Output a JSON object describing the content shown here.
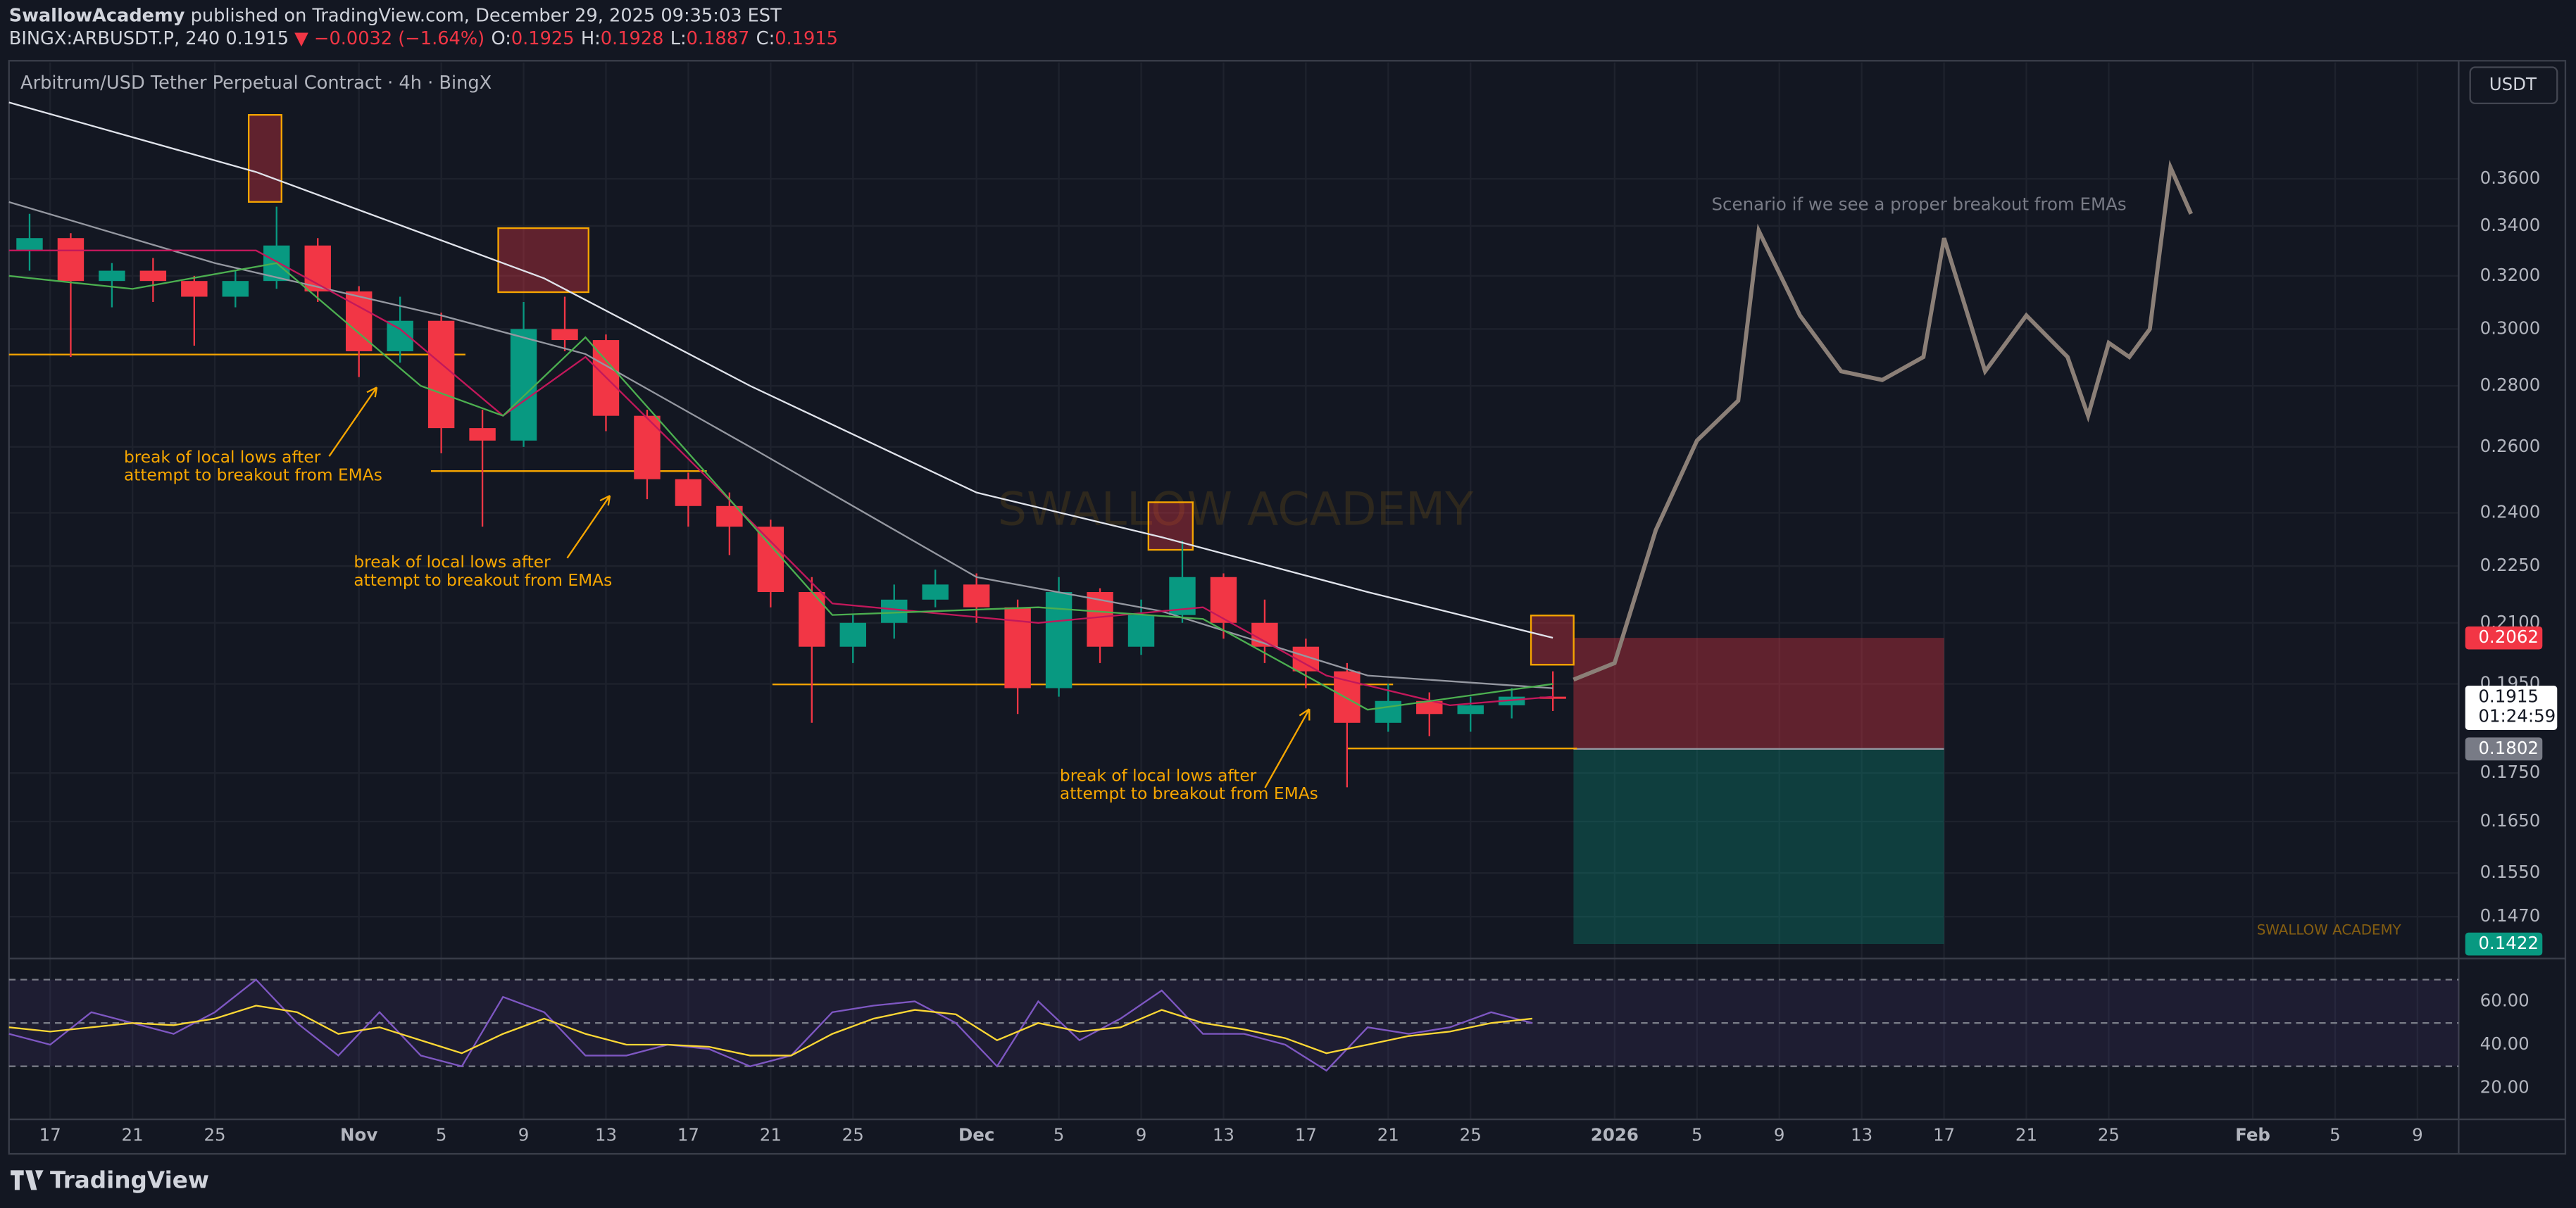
{
  "header": {
    "author": "SwallowAcademy",
    "published": "published on TradingView.com, December 29, 2025 09:35:03 EST",
    "symbol": "BINGX:ARBUSDT.P, 240",
    "last": "0.1915",
    "change": "▼ −0.0032 (−1.64%)",
    "ohlc": [
      {
        "label": "O:",
        "value": "0.1925"
      },
      {
        "label": "H:",
        "value": "0.1928"
      },
      {
        "label": "L:",
        "value": "0.1887"
      },
      {
        "label": "C:",
        "value": "0.1915"
      }
    ]
  },
  "footer": {
    "brand": "TradingView"
  },
  "chart_data": [
    {
      "type": "candlestick",
      "title": "Arbitrum/USD Tether Perpetual Contract · 4h · BingX",
      "currency": "USDT",
      "log_scale": true,
      "grid": true,
      "xlim": [
        "2025-10-15",
        "2026-02-11"
      ],
      "xticks": [
        {
          "value": "2025-10-17",
          "label": "17"
        },
        {
          "value": "2025-10-21",
          "label": "21"
        },
        {
          "value": "2025-10-25",
          "label": "25"
        },
        {
          "value": "2025-11-01",
          "label": "Nov"
        },
        {
          "value": "2025-11-05",
          "label": "5"
        },
        {
          "value": "2025-11-09",
          "label": "9"
        },
        {
          "value": "2025-11-13",
          "label": "13"
        },
        {
          "value": "2025-11-17",
          "label": "17"
        },
        {
          "value": "2025-11-21",
          "label": "21"
        },
        {
          "value": "2025-11-25",
          "label": "25"
        },
        {
          "value": "2025-12-01",
          "label": "Dec"
        },
        {
          "value": "2025-12-05",
          "label": "5"
        },
        {
          "value": "2025-12-09",
          "label": "9"
        },
        {
          "value": "2025-12-13",
          "label": "13"
        },
        {
          "value": "2025-12-17",
          "label": "17"
        },
        {
          "value": "2025-12-21",
          "label": "21"
        },
        {
          "value": "2025-12-25",
          "label": "25"
        },
        {
          "value": "2026-01-01",
          "label": "2026"
        },
        {
          "value": "2026-01-05",
          "label": "5"
        },
        {
          "value": "2026-01-09",
          "label": "9"
        },
        {
          "value": "2026-01-13",
          "label": "13"
        },
        {
          "value": "2026-01-17",
          "label": "17"
        },
        {
          "value": "2026-01-21",
          "label": "21"
        },
        {
          "value": "2026-01-25",
          "label": "25"
        },
        {
          "value": "2026-02-01",
          "label": "Feb"
        },
        {
          "value": "2026-02-05",
          "label": "5"
        },
        {
          "value": "2026-02-09",
          "label": "9"
        }
      ],
      "ylim": [
        0.14,
        0.413
      ],
      "yticks": [
        {
          "value": 0.36,
          "label": "0.3600"
        },
        {
          "value": 0.34,
          "label": "0.3400"
        },
        {
          "value": 0.32,
          "label": "0.3200"
        },
        {
          "value": 0.3,
          "label": "0.3000"
        },
        {
          "value": 0.28,
          "label": "0.2800"
        },
        {
          "value": 0.26,
          "label": "0.2600"
        },
        {
          "value": 0.24,
          "label": "0.2400"
        },
        {
          "value": 0.225,
          "label": "0.2250"
        },
        {
          "value": 0.21,
          "label": "0.2100"
        },
        {
          "value": 0.195,
          "label": "0.1950"
        },
        {
          "value": 0.175,
          "label": "0.1750"
        },
        {
          "value": 0.165,
          "label": "0.1650"
        },
        {
          "value": 0.155,
          "label": "0.1550"
        },
        {
          "value": 0.147,
          "label": "0.1470"
        }
      ],
      "up_color": "#089981",
      "down_color": "#f23645",
      "candles": {
        "x": [
          "2025-10-15",
          "2025-10-17",
          "2025-10-19",
          "2025-10-21",
          "2025-10-23",
          "2025-10-25",
          "2025-10-27",
          "2025-10-29",
          "2025-10-31",
          "2025-11-02",
          "2025-11-04",
          "2025-11-06",
          "2025-11-08",
          "2025-11-10",
          "2025-11-12",
          "2025-11-14",
          "2025-11-16",
          "2025-11-18",
          "2025-11-20",
          "2025-11-22",
          "2025-11-24",
          "2025-11-26",
          "2025-11-28",
          "2025-11-30",
          "2025-12-02",
          "2025-12-04",
          "2025-12-06",
          "2025-12-08",
          "2025-12-10",
          "2025-12-12",
          "2025-12-14",
          "2025-12-16",
          "2025-12-18",
          "2025-12-20",
          "2025-12-22",
          "2025-12-24",
          "2025-12-26",
          "2025-12-28"
        ],
        "open": [
          0.33,
          0.335,
          0.318,
          0.322,
          0.318,
          0.312,
          0.318,
          0.332,
          0.314,
          0.292,
          0.303,
          0.266,
          0.262,
          0.3,
          0.296,
          0.27,
          0.25,
          0.242,
          0.236,
          0.218,
          0.204,
          0.21,
          0.216,
          0.22,
          0.214,
          0.194,
          0.218,
          0.204,
          0.212,
          0.222,
          0.21,
          0.204,
          0.198,
          0.186,
          0.191,
          0.188,
          0.19,
          0.192
        ],
        "high": [
          0.345,
          0.337,
          0.325,
          0.327,
          0.32,
          0.322,
          0.348,
          0.335,
          0.316,
          0.312,
          0.306,
          0.272,
          0.31,
          0.312,
          0.298,
          0.272,
          0.252,
          0.246,
          0.238,
          0.222,
          0.212,
          0.22,
          0.224,
          0.223,
          0.216,
          0.222,
          0.219,
          0.216,
          0.232,
          0.223,
          0.216,
          0.206,
          0.2,
          0.195,
          0.193,
          0.192,
          0.194,
          0.198
        ],
        "low": [
          0.322,
          0.29,
          0.308,
          0.31,
          0.294,
          0.308,
          0.315,
          0.31,
          0.283,
          0.288,
          0.258,
          0.236,
          0.26,
          0.292,
          0.265,
          0.244,
          0.236,
          0.228,
          0.214,
          0.186,
          0.2,
          0.206,
          0.214,
          0.21,
          0.188,
          0.192,
          0.2,
          0.202,
          0.21,
          0.206,
          0.2,
          0.194,
          0.172,
          0.184,
          0.183,
          0.184,
          0.187,
          0.1887
        ],
        "close": [
          0.335,
          0.318,
          0.322,
          0.318,
          0.312,
          0.318,
          0.332,
          0.314,
          0.292,
          0.303,
          0.266,
          0.262,
          0.3,
          0.296,
          0.27,
          0.25,
          0.242,
          0.236,
          0.218,
          0.204,
          0.21,
          0.216,
          0.22,
          0.214,
          0.194,
          0.218,
          0.204,
          0.212,
          0.222,
          0.21,
          0.204,
          0.198,
          0.186,
          0.191,
          0.188,
          0.19,
          0.192,
          0.1915
        ]
      },
      "lines": [
        {
          "color": "#e0e3eb",
          "x": [
            "2025-10-15",
            "2025-10-27",
            "2025-11-10",
            "2025-11-20",
            "2025-12-01",
            "2025-12-10",
            "2025-12-20",
            "2025-12-29"
          ],
          "values": [
            0.395,
            0.363,
            0.319,
            0.28,
            0.246,
            0.233,
            0.218,
            0.2062
          ]
        },
        {
          "color": "#9598a1",
          "x": [
            "2025-10-15",
            "2025-10-25",
            "2025-11-05",
            "2025-11-12",
            "2025-11-20",
            "2025-12-01",
            "2025-12-10",
            "2025-12-20",
            "2025-12-29"
          ],
          "values": [
            0.35,
            0.325,
            0.305,
            0.291,
            0.26,
            0.222,
            0.213,
            0.197,
            0.194
          ]
        },
        {
          "color": "#c2185b",
          "x": [
            "2025-10-15",
            "2025-10-27",
            "2025-11-03",
            "2025-11-08",
            "2025-11-12",
            "2025-11-18",
            "2025-11-24",
            "2025-12-04",
            "2025-12-12",
            "2025-12-18",
            "2025-12-24",
            "2025-12-29"
          ],
          "values": [
            0.33,
            0.33,
            0.3,
            0.27,
            0.29,
            0.25,
            0.215,
            0.21,
            0.214,
            0.197,
            0.19,
            0.192
          ]
        },
        {
          "color": "#4caf50",
          "x": [
            "2025-10-15",
            "2025-10-21",
            "2025-10-28",
            "2025-11-04",
            "2025-11-08",
            "2025-11-12",
            "2025-11-24",
            "2025-12-04",
            "2025-12-12",
            "2025-12-20",
            "2025-12-29"
          ],
          "values": [
            0.32,
            0.315,
            0.325,
            0.28,
            0.27,
            0.297,
            0.212,
            0.214,
            0.211,
            0.189,
            0.195
          ]
        }
      ],
      "projection": {
        "color": "#8b7f77",
        "x": [
          "2025-12-30",
          "2026-01-01",
          "2026-01-03",
          "2026-01-05",
          "2026-01-07",
          "2026-01-08",
          "2026-01-10",
          "2026-01-12",
          "2026-01-14",
          "2026-01-16",
          "2026-01-17",
          "2026-01-19",
          "2026-01-21",
          "2026-01-23",
          "2026-01-24",
          "2026-01-25",
          "2026-01-26",
          "2026-01-27",
          "2026-01-28",
          "2026-01-29"
        ],
        "values": [
          0.196,
          0.2,
          0.235,
          0.262,
          0.275,
          0.338,
          0.305,
          0.285,
          0.282,
          0.29,
          0.335,
          0.285,
          0.305,
          0.29,
          0.27,
          0.295,
          0.29,
          0.3,
          0.365,
          0.345
        ]
      },
      "position": {
        "start": "2025-12-30",
        "end": "2026-01-17",
        "stop": 0.2062,
        "entry": 0.1802,
        "target": 0.1422
      },
      "last_price": 0.1915,
      "countdown": "01:24:59",
      "annotations": [
        [
          "break of local lows after",
          "attempt to breakout from EMAs"
        ],
        [
          "break of local lows after",
          "attempt to breakout from EMAs"
        ],
        [
          "break of local lows after",
          "attempt to breakout from EMAs"
        ]
      ],
      "scenario": "Scenario if we see a proper breakout from EMAs",
      "watermark": "SWALLOW ACADEMY"
    },
    {
      "type": "line",
      "xlim": [
        "2025-10-15",
        "2026-02-11"
      ],
      "ylim": [
        7,
        79
      ],
      "yticks": [
        {
          "value": 60,
          "label": "60.00"
        },
        {
          "value": 40,
          "label": "40.00"
        },
        {
          "value": 20,
          "label": "20.00"
        }
      ],
      "levels": [
        70,
        50,
        30
      ],
      "series": [
        {
          "color": "#7e57c2",
          "x": [
            "2025-10-15",
            "2025-10-17",
            "2025-10-19",
            "2025-10-21",
            "2025-10-23",
            "2025-10-25",
            "2025-10-27",
            "2025-10-29",
            "2025-10-31",
            "2025-11-02",
            "2025-11-04",
            "2025-11-06",
            "2025-11-08",
            "2025-11-10",
            "2025-11-12",
            "2025-11-14",
            "2025-11-16",
            "2025-11-18",
            "2025-11-20",
            "2025-11-22",
            "2025-11-24",
            "2025-11-26",
            "2025-11-28",
            "2025-11-30",
            "2025-12-02",
            "2025-12-04",
            "2025-12-06",
            "2025-12-08",
            "2025-12-10",
            "2025-12-12",
            "2025-12-14",
            "2025-12-16",
            "2025-12-18",
            "2025-12-20",
            "2025-12-22",
            "2025-12-24",
            "2025-12-26",
            "2025-12-28"
          ],
          "values": [
            45,
            40,
            55,
            50,
            45,
            55,
            70,
            50,
            35,
            55,
            35,
            30,
            62,
            55,
            35,
            35,
            40,
            38,
            30,
            35,
            55,
            58,
            60,
            50,
            30,
            60,
            42,
            52,
            65,
            45,
            45,
            40,
            28,
            48,
            45,
            48,
            55,
            50
          ]
        },
        {
          "color": "#fdd835",
          "x": [
            "2025-10-15",
            "2025-10-17",
            "2025-10-19",
            "2025-10-21",
            "2025-10-23",
            "2025-10-25",
            "2025-10-27",
            "2025-10-29",
            "2025-10-31",
            "2025-11-02",
            "2025-11-04",
            "2025-11-06",
            "2025-11-08",
            "2025-11-10",
            "2025-11-12",
            "2025-11-14",
            "2025-11-16",
            "2025-11-18",
            "2025-11-20",
            "2025-11-22",
            "2025-11-24",
            "2025-11-26",
            "2025-11-28",
            "2025-11-30",
            "2025-12-02",
            "2025-12-04",
            "2025-12-06",
            "2025-12-08",
            "2025-12-10",
            "2025-12-12",
            "2025-12-14",
            "2025-12-16",
            "2025-12-18",
            "2025-12-20",
            "2025-12-22",
            "2025-12-24",
            "2025-12-26",
            "2025-12-28"
          ],
          "values": [
            48,
            46,
            48,
            50,
            49,
            52,
            58,
            55,
            45,
            48,
            42,
            36,
            45,
            52,
            45,
            40,
            40,
            39,
            35,
            35,
            45,
            52,
            56,
            54,
            42,
            50,
            46,
            48,
            56,
            50,
            47,
            43,
            36,
            40,
            44,
            46,
            50,
            52
          ]
        }
      ]
    }
  ]
}
